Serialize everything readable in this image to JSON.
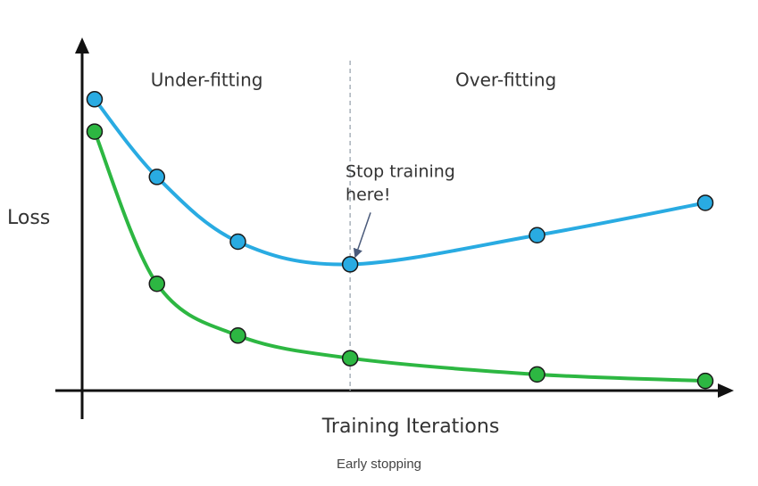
{
  "caption": "Early stopping",
  "chart_data": {
    "type": "line",
    "title": "",
    "xlabel": "Training Iterations",
    "ylabel": "Loss",
    "xlim": [
      0,
      10
    ],
    "ylim": [
      0,
      10
    ],
    "grid": false,
    "x": [
      0.2,
      1.2,
      2.5,
      4.3,
      7.3,
      10.0
    ],
    "series": [
      {
        "color": "#29ABE2",
        "values": [
          9.0,
          6.6,
          4.6,
          3.9,
          4.8,
          5.8
        ]
      },
      {
        "color": "#2DB742",
        "values": [
          8.0,
          3.3,
          1.7,
          1.0,
          0.5,
          0.3
        ]
      }
    ],
    "regions": [
      {
        "label": "Under-fitting",
        "x": 2.0,
        "y": 9.6
      },
      {
        "label": "Over-fitting",
        "x": 6.8,
        "y": 9.6
      }
    ],
    "stop_line_x": 4.3,
    "annotation": {
      "lines": [
        "Stop training",
        "here!"
      ],
      "x": 4.8,
      "y": 6.6,
      "target": {
        "x": 4.3,
        "y": 3.9
      }
    }
  }
}
